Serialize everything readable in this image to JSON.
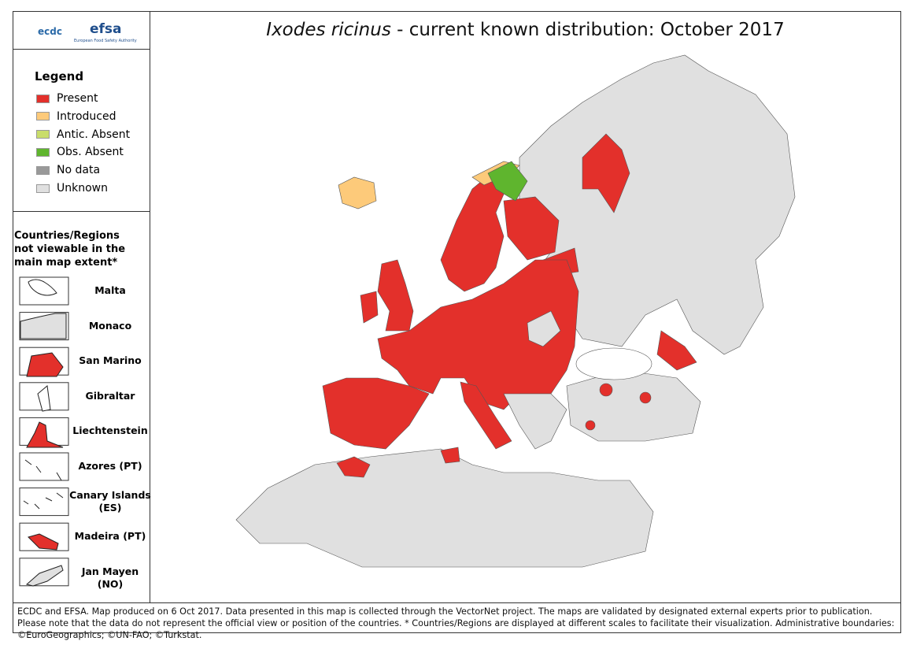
{
  "header": {
    "logo_ecdc": "ecdc",
    "logo_efsa": "efsa",
    "logo_efsa_subtitle": "European Food Safety Authority",
    "title_species": "Ixodes ricinus",
    "title_rest": " - current known distribution: October 2017"
  },
  "legend": {
    "title": "Legend",
    "items": [
      {
        "label": "Present",
        "color": "#e3302b"
      },
      {
        "label": "Introduced",
        "color": "#fdca7a"
      },
      {
        "label": "Antic. Absent",
        "color": "#c9dd6a"
      },
      {
        "label": "Obs. Absent",
        "color": "#5fb52e"
      },
      {
        "label": "No data",
        "color": "#999999"
      },
      {
        "label": "Unknown",
        "color": "#e0e0e0"
      }
    ]
  },
  "insets": {
    "title": "Countries/Regions not viewable in the main map extent*",
    "items": [
      {
        "label": "Malta",
        "color": "#ffffff"
      },
      {
        "label": "Monaco",
        "color": "#e0e0e0"
      },
      {
        "label": "San Marino",
        "color": "#e3302b"
      },
      {
        "label": "Gibraltar",
        "color": "#ffffff"
      },
      {
        "label": "Liechtenstein",
        "color": "#e3302b"
      },
      {
        "label": "Azores (PT)",
        "color": "#ffffff"
      },
      {
        "label": "Canary Islands (ES)",
        "color": "#ffffff"
      },
      {
        "label": "Madeira (PT)",
        "color": "#e3302b"
      },
      {
        "label": "Jan Mayen (NO)",
        "color": "#e0e0e0"
      }
    ]
  },
  "footer": "ECDC and EFSA. Map produced on 6 Oct 2017. Data presented in this map is collected through the VectorNet project. The maps are validated by designated external experts prior to publication. Please note that the data do not represent the official view or position of the countries. * Countries/Regions are displayed at different scales to facilitate their visualization. Administrative boundaries: ©EuroGeographics; ©UN-FAO; ©Turkstat."
}
